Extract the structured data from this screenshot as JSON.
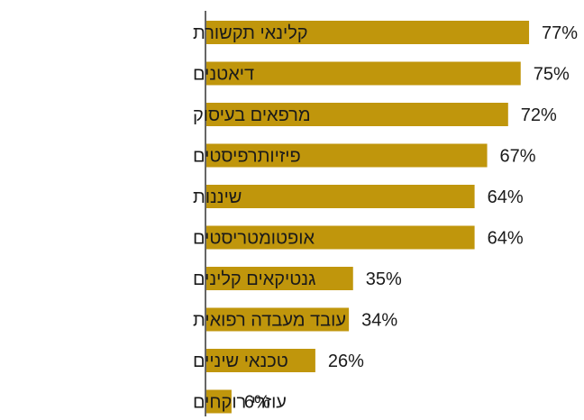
{
  "chart_data": {
    "type": "bar",
    "orientation": "horizontal",
    "categories": [
      "קלינאי תקשורת",
      "דיאטנים",
      "מרפאים בעיסוק",
      "פיזיותרפיסטים",
      "שיננות",
      "אופטומטריסטים",
      "גנטיקאים קלינים",
      "עובד מעבדה רפואית",
      "טכנאי שיניים",
      "עוזרי רוקחים"
    ],
    "values": [
      77,
      75,
      72,
      67,
      64,
      64,
      35,
      34,
      26,
      6
    ],
    "value_labels": [
      "77%",
      "75%",
      "72%",
      "67%",
      "64%",
      "64%",
      "35%",
      "34%",
      "26%",
      "6%"
    ],
    "xlim": [
      0,
      100
    ],
    "grid": false,
    "legend": "none",
    "bar_color": "#c0960c"
  }
}
